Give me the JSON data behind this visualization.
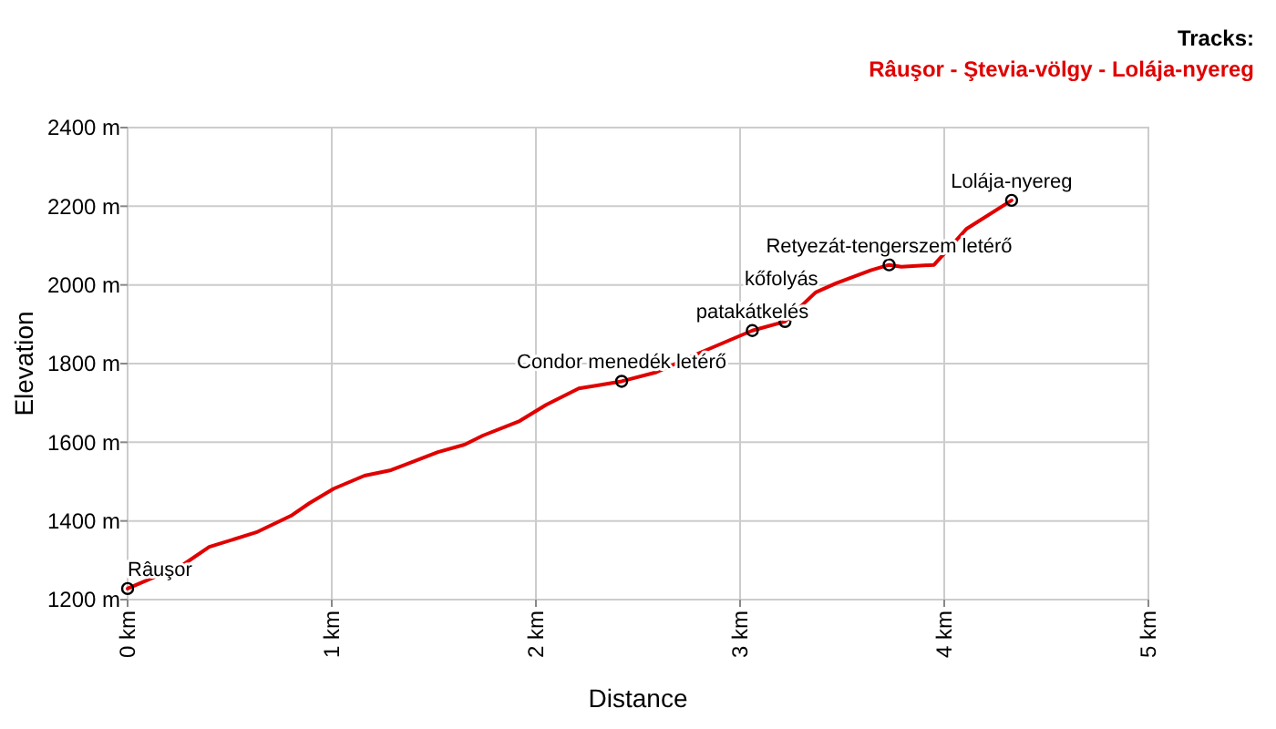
{
  "chart_data": {
    "type": "line",
    "xlabel": "Distance",
    "ylabel": "Elevation",
    "legend_title": "Tracks:",
    "legend": "top right",
    "grid": true,
    "line_style": "solid",
    "xlim": [
      0,
      5
    ],
    "xticks": [
      {
        "value": 0,
        "label": "0 km"
      },
      {
        "value": 1,
        "label": "1 km"
      },
      {
        "value": 2,
        "label": "2 km"
      },
      {
        "value": 3,
        "label": "3 km"
      },
      {
        "value": 4,
        "label": "4 km"
      },
      {
        "value": 5,
        "label": "5 km"
      }
    ],
    "ylim": [
      1200,
      2400
    ],
    "yticks": [
      {
        "value": 1200,
        "label": "1200 m"
      },
      {
        "value": 1400,
        "label": "1400 m"
      },
      {
        "value": 1600,
        "label": "1600 m"
      },
      {
        "value": 1800,
        "label": "1800 m"
      },
      {
        "value": 2000,
        "label": "2000 m"
      },
      {
        "value": 2200,
        "label": "2200 m"
      },
      {
        "value": 2400,
        "label": "2400 m"
      }
    ],
    "series": [
      {
        "name": "Râuşor - Ştevia-völgy - Lolája-nyereg",
        "color": "#e00000",
        "marker": "none",
        "x": [
          0,
          0.27,
          0.4,
          0.63,
          0.8,
          0.89,
          1.01,
          1.16,
          1.29,
          1.52,
          1.65,
          1.74,
          1.92,
          2.05,
          2.21,
          2.32,
          2.42,
          2.59,
          2.81,
          3.06,
          3.22,
          3.37,
          3.47,
          3.64,
          3.73,
          3.79,
          3.95,
          4.11,
          4.33
        ],
        "values": [
          1228,
          1288,
          1334,
          1371,
          1413,
          1445,
          1482,
          1515,
          1529,
          1575,
          1594,
          1617,
          1654,
          1695,
          1737,
          1746,
          1755,
          1778,
          1829,
          1884,
          1907,
          1981,
          2004,
          2037,
          2051,
          2046,
          2051,
          2143,
          2215
        ]
      },
      {
        "color": "#000000",
        "type": "scatter",
        "marker": "circle",
        "x": [
          0,
          2.42,
          3.06,
          3.22,
          3.73,
          4.33
        ],
        "values": [
          1228,
          1755,
          1884,
          1907,
          2051,
          2215
        ]
      }
    ],
    "annotations": [
      {
        "text": "Râuşor",
        "x": 0,
        "y": 1228
      },
      {
        "text": "Condor menedék letérő",
        "x": 2.42,
        "y": 1755
      },
      {
        "text": "patakátkelés",
        "x": 3.06,
        "y": 1884
      },
      {
        "text": "kőfolyás",
        "x": 3.22,
        "y": 1907
      },
      {
        "text": "Retyezát-tengerszem letérő",
        "x": 3.73,
        "y": 2051
      },
      {
        "text": "Lolája-nyereg",
        "x": 4.33,
        "y": 2215
      }
    ]
  }
}
